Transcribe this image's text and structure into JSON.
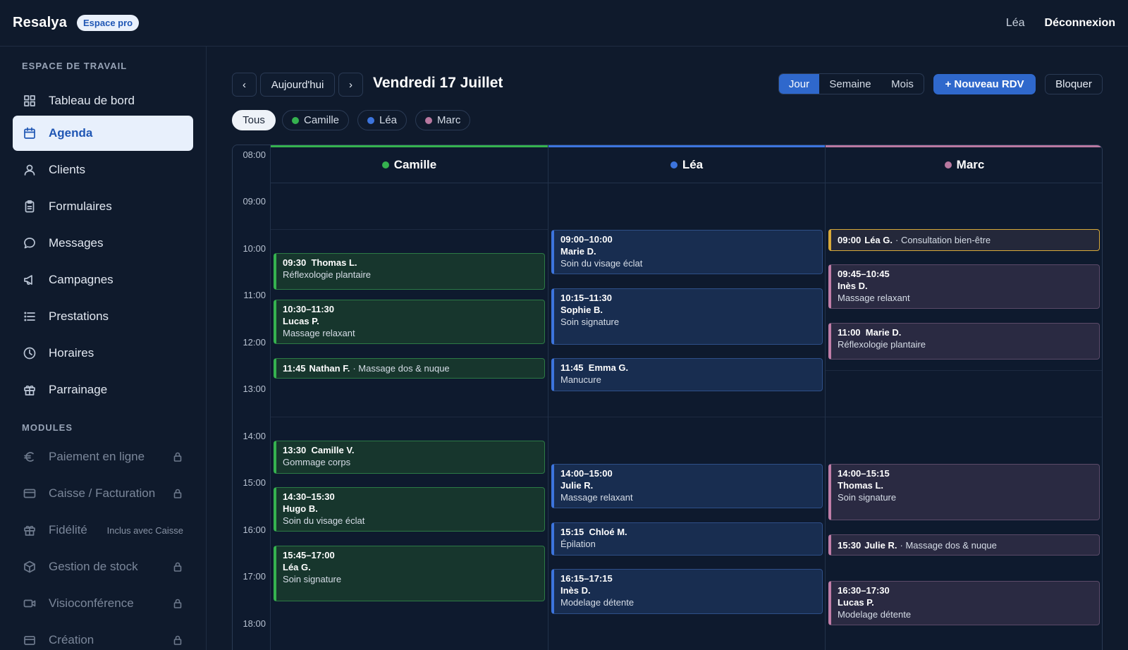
{
  "app": {
    "brand": "Resalya",
    "badge": "Espace pro",
    "user": "Léa",
    "logout": "Déconnexion"
  },
  "sidebar": {
    "workspace_title": "ESPACE DE TRAVAIL",
    "items": [
      {
        "label": "Tableau de bord",
        "icon": "dashboard-icon"
      },
      {
        "label": "Agenda",
        "icon": "calendar-icon",
        "active": true
      },
      {
        "label": "Clients",
        "icon": "user-icon"
      },
      {
        "label": "Formulaires",
        "icon": "clipboard-icon"
      },
      {
        "label": "Messages",
        "icon": "message-icon"
      },
      {
        "label": "Campagnes",
        "icon": "megaphone-icon"
      },
      {
        "label": "Prestations",
        "icon": "list-icon"
      },
      {
        "label": "Horaires",
        "icon": "clock-icon"
      },
      {
        "label": "Parrainage",
        "icon": "gift-icon"
      }
    ],
    "modules_title": "MODULES",
    "modules": [
      {
        "label": "Paiement en ligne",
        "icon": "euro-icon",
        "locked": true
      },
      {
        "label": "Caisse / Facturation",
        "icon": "card-icon",
        "locked": true
      },
      {
        "label": "Fidélité",
        "icon": "gift-icon",
        "note": "Inclus avec Caisse"
      },
      {
        "label": "Gestion de stock",
        "icon": "box-icon",
        "locked": true
      },
      {
        "label": "Visioconférence",
        "icon": "video-icon",
        "locked": true
      },
      {
        "label": "Création",
        "icon": "create-icon",
        "locked": true
      }
    ]
  },
  "toolbar": {
    "prev": "‹",
    "today": "Aujourd'hui",
    "next": "›",
    "date": "Vendredi 17 Juillet",
    "views": [
      "Jour",
      "Semaine",
      "Mois"
    ],
    "active_view": "Jour",
    "new": "+ Nouveau RDV",
    "block": "Bloquer"
  },
  "filters": {
    "all": "Tous",
    "staff": [
      {
        "name": "Camille",
        "color": "#35b24f"
      },
      {
        "name": "Léa",
        "color": "#3c74dd"
      },
      {
        "name": "Marc",
        "color": "#b878a0"
      }
    ]
  },
  "calendar": {
    "hours": [
      "08:00",
      "09:00",
      "10:00",
      "11:00",
      "12:00",
      "13:00",
      "14:00",
      "15:00",
      "16:00",
      "17:00",
      "18:00"
    ],
    "columns": [
      {
        "name": "Camille",
        "color": "#35b24f"
      },
      {
        "name": "Léa",
        "color": "#3c74dd"
      },
      {
        "name": "Marc",
        "color": "#b878a0"
      }
    ],
    "events": {
      "camille": [
        {
          "time": "09:30",
          "name": "Thomas L.",
          "service": "Réflexologie plantaire"
        },
        {
          "time": "10:30–11:30",
          "name": "Lucas P.",
          "service": "Massage relaxant"
        },
        {
          "time": "11:45",
          "name": "Nathan F.",
          "service": "· Massage dos & nuque"
        },
        {
          "time": "13:30",
          "name": "Camille V.",
          "service": "Gommage corps"
        },
        {
          "time": "14:30–15:30",
          "name": "Hugo B.",
          "service": "Soin du visage éclat"
        },
        {
          "time": "15:45–17:00",
          "name": "Léa G.",
          "service": "Soin signature"
        }
      ],
      "lea": [
        {
          "time": "09:00–10:00",
          "name": "Marie D.",
          "service": "Soin du visage éclat"
        },
        {
          "time": "10:15–11:30",
          "name": "Sophie B.",
          "service": "Soin signature"
        },
        {
          "time": "11:45",
          "name": "Emma G.",
          "service": "Manucure"
        },
        {
          "time": "14:00–15:00",
          "name": "Julie R.",
          "service": "Massage relaxant"
        },
        {
          "time": "15:15",
          "name": "Chloé M.",
          "service": "Épilation"
        },
        {
          "time": "16:15–17:15",
          "name": "Inès D.",
          "service": "Modelage détente"
        }
      ],
      "marc": [
        {
          "time": "09:00",
          "name": "Léa G.",
          "service": "· Consultation bien-être"
        },
        {
          "time": "09:45–10:45",
          "name": "Inès D.",
          "service": "Massage relaxant"
        },
        {
          "time": "11:00",
          "name": "Marie D.",
          "service": "Réflexologie plantaire"
        },
        {
          "time": "14:00–15:15",
          "name": "Thomas L.",
          "service": "Soin signature"
        },
        {
          "time": "15:30",
          "name": "Julie R.",
          "service": "· Massage dos & nuque"
        },
        {
          "time": "16:30–17:30",
          "name": "Lucas P.",
          "service": "Modelage détente"
        }
      ]
    }
  }
}
